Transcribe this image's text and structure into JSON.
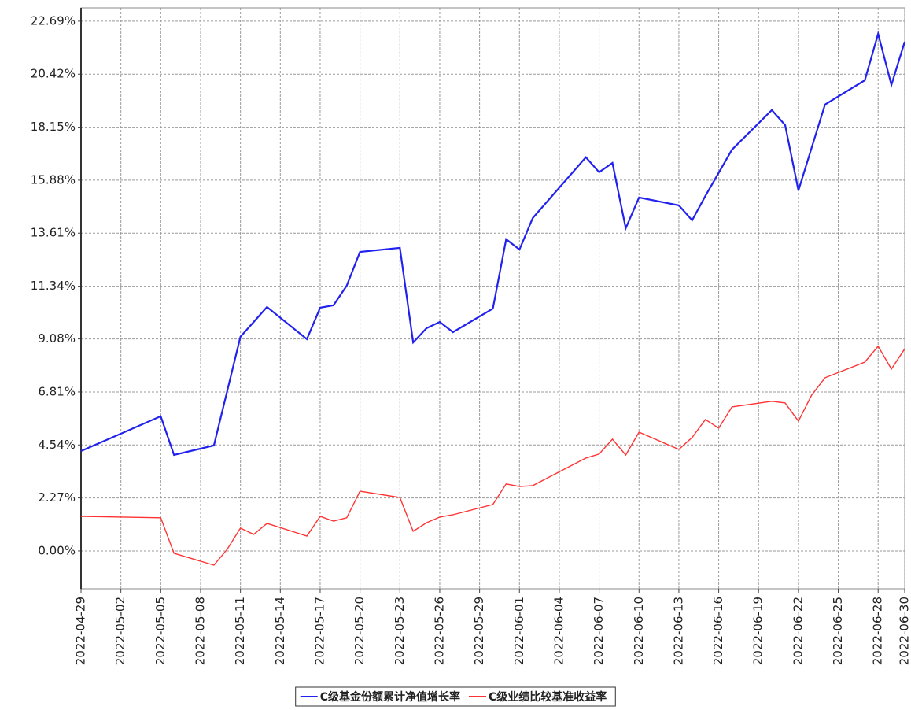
{
  "chart_data": {
    "type": "line",
    "x": [
      "2022-04-29",
      "2022-05-05",
      "2022-05-06",
      "2022-05-09",
      "2022-05-10",
      "2022-05-11",
      "2022-05-12",
      "2022-05-13",
      "2022-05-16",
      "2022-05-17",
      "2022-05-18",
      "2022-05-19",
      "2022-05-20",
      "2022-05-23",
      "2022-05-24",
      "2022-05-25",
      "2022-05-26",
      "2022-05-27",
      "2022-05-30",
      "2022-05-31",
      "2022-06-01",
      "2022-06-02",
      "2022-06-06",
      "2022-06-07",
      "2022-06-08",
      "2022-06-09",
      "2022-06-10",
      "2022-06-13",
      "2022-06-14",
      "2022-06-15",
      "2022-06-16",
      "2022-06-17",
      "2022-06-20",
      "2022-06-21",
      "2022-06-22",
      "2022-06-23",
      "2022-06-24",
      "2022-06-27",
      "2022-06-28",
      "2022-06-29",
      "2022-06-30"
    ],
    "series": [
      {
        "name": "C级基金份额累计净值增长率",
        "color": "#2222ee",
        "values": [
          4.28,
          5.77,
          4.11,
          4.52,
          6.85,
          9.17,
          9.81,
          10.45,
          9.07,
          10.42,
          10.52,
          11.36,
          12.81,
          12.98,
          8.93,
          9.54,
          9.81,
          9.37,
          10.38,
          13.35,
          12.91,
          14.26,
          16.86,
          16.22,
          16.62,
          13.82,
          15.14,
          14.8,
          14.16,
          15.21,
          16.2,
          17.19,
          18.88,
          18.24,
          15.44,
          17.28,
          19.12,
          20.16,
          22.15,
          19.96,
          21.81
        ]
      },
      {
        "name": "C级业绩比较基准收益率",
        "color": "#ff3333",
        "values": [
          1.48,
          1.42,
          -0.1,
          -0.61,
          0.07,
          0.98,
          0.71,
          1.18,
          0.64,
          1.48,
          1.28,
          1.42,
          2.56,
          2.29,
          0.84,
          1.21,
          1.45,
          1.55,
          1.99,
          2.87,
          2.76,
          2.8,
          3.98,
          4.15,
          4.79,
          4.11,
          5.09,
          4.35,
          4.86,
          5.63,
          5.26,
          6.17,
          6.41,
          6.34,
          5.56,
          6.68,
          7.42,
          8.09,
          8.77,
          7.79,
          8.66
        ]
      }
    ],
    "xlim": [
      "2022-04-29",
      "2022-06-30"
    ],
    "xticks": [
      "2022-04-29",
      "2022-05-02",
      "2022-05-05",
      "2022-05-08",
      "2022-05-11",
      "2022-05-14",
      "2022-05-17",
      "2022-05-20",
      "2022-05-23",
      "2022-05-26",
      "2022-05-29",
      "2022-06-01",
      "2022-06-04",
      "2022-06-07",
      "2022-06-10",
      "2022-06-13",
      "2022-06-16",
      "2022-06-19",
      "2022-06-22",
      "2022-06-25",
      "2022-06-28",
      "2022-06-30"
    ],
    "ylim": [
      -1.62,
      23.26
    ],
    "yticks": [
      {
        "value": 0,
        "label": "0.00%"
      },
      {
        "value": 2.27,
        "label": "2.27%"
      },
      {
        "value": 4.54,
        "label": "4.54%"
      },
      {
        "value": 6.81,
        "label": "6.81%"
      },
      {
        "value": 9.08,
        "label": "9.08%"
      },
      {
        "value": 11.34,
        "label": "11.34%"
      },
      {
        "value": 13.61,
        "label": "13.61%"
      },
      {
        "value": 15.88,
        "label": "15.88%"
      },
      {
        "value": 18.15,
        "label": "18.15%"
      },
      {
        "value": 20.42,
        "label": "20.42%"
      },
      {
        "value": 22.69,
        "label": "22.69%"
      }
    ],
    "grid": true,
    "legend": "bottom"
  }
}
